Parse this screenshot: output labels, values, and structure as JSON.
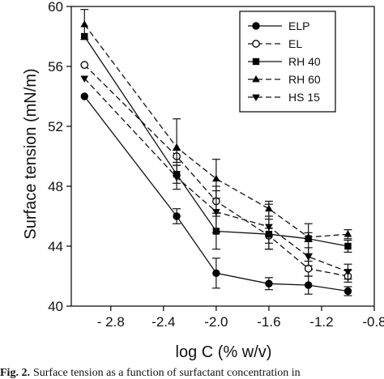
{
  "chart_data": {
    "type": "line",
    "xlabel": "log C (% w/v)",
    "ylabel": "Surface tension (mN/m)",
    "xlim": [
      -3.1,
      -0.8
    ],
    "ylim": [
      40,
      60
    ],
    "xticks": [
      -2.8,
      -2.4,
      -2.0,
      -1.6,
      -1.2,
      -0.8
    ],
    "xtick_labels": [
      "- 2.8",
      "-2.4",
      "-2.0",
      "-1.6",
      "-1.2",
      "-0.8"
    ],
    "yticks": [
      40,
      44,
      48,
      52,
      56,
      60
    ],
    "ytick_labels": [
      "40",
      "44",
      "48",
      "52",
      "56",
      "60"
    ],
    "x": [
      -3.0,
      -2.3,
      -2.0,
      -1.6,
      -1.3,
      -1.0
    ],
    "legend_position": "top-right",
    "grid": false,
    "series": [
      {
        "name": "ELP",
        "line": "solid",
        "marker": "circle-filled",
        "values": [
          54.0,
          46.0,
          42.2,
          41.5,
          41.4,
          41.0
        ],
        "errors": [
          0.0,
          0.5,
          1.0,
          0.4,
          0.6,
          0.3
        ]
      },
      {
        "name": "EL",
        "line": "dashed",
        "marker": "circle-open",
        "values": [
          56.1,
          50.0,
          47.0,
          44.7,
          42.5,
          42.0
        ],
        "errors": [
          0.0,
          0.4,
          1.0,
          0.5,
          0.5,
          0.4
        ]
      },
      {
        "name": "RH 40",
        "line": "solid",
        "marker": "square-filled",
        "values": [
          58.0,
          48.8,
          45.0,
          44.8,
          44.5,
          44.0
        ],
        "errors": [
          0.0,
          0.6,
          1.2,
          1.0,
          1.0,
          0.4
        ]
      },
      {
        "name": "RH 60",
        "line": "dashed",
        "marker": "triangle-up-filled",
        "values": [
          58.8,
          50.6,
          48.5,
          46.5,
          44.6,
          44.8
        ],
        "errors": [
          1.0,
          1.9,
          1.3,
          0.5,
          0.3,
          0.3
        ]
      },
      {
        "name": "HS 15",
        "line": "dashed",
        "marker": "triangle-down-filled",
        "values": [
          55.2,
          48.6,
          46.3,
          45.3,
          43.3,
          42.3
        ],
        "errors": [
          0.0,
          0.8,
          1.4,
          1.5,
          0.6,
          0.5
        ]
      }
    ]
  },
  "caption": {
    "label": "Fig. 2.",
    "text": "Surface tension as a function of surfactant concentration in"
  }
}
